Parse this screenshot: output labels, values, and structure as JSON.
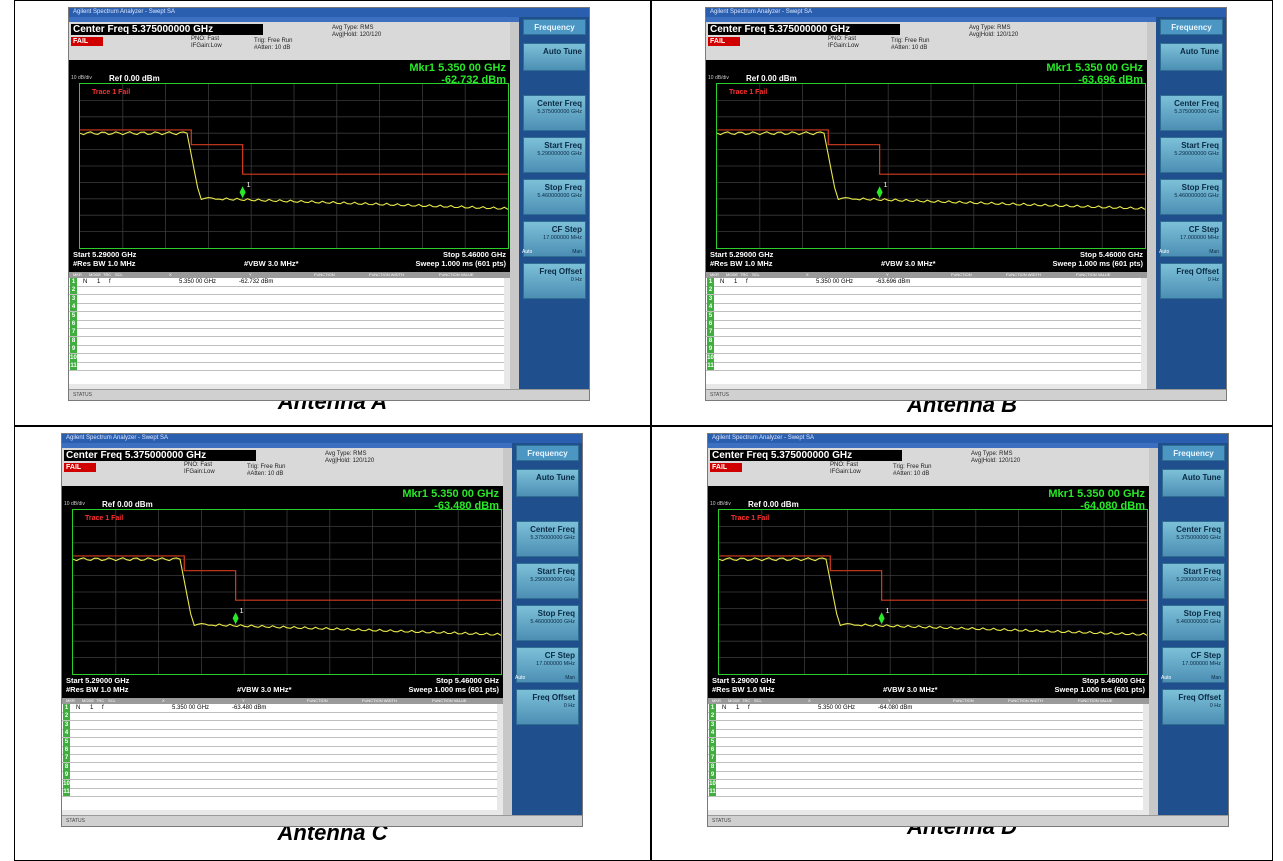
{
  "panels": [
    {
      "caption": "Antenna A",
      "window_title": "Agilent Spectrum Analyzer - Swept SA",
      "center_freq": "Center Freq 5.375000000 GHz",
      "fail": "FAIL",
      "trig": "Trig: Free Run",
      "atten": "#Atten: 10 dB",
      "pno": "PNO: Fast",
      "ifgain": "IFGain:Low",
      "avg_type": "Avg Type: RMS",
      "avg_hold": "Avg|Hold: 120/120",
      "marker_freq": "Mkr1 5.350 00 GHz",
      "marker_val": "-62.732 dBm",
      "ref": "Ref 0.00 dBm",
      "ref_div": "10 dB/div",
      "trace_label": "Trace 1 Fail",
      "start": "Start 5.29000 GHz",
      "res_bw": "#Res BW 1.0 MHz",
      "vbw": "#VBW 3.0 MHz*",
      "stop": "Stop 5.46000 GHz",
      "sweep": "Sweep  1.000 ms (601 pts)",
      "table_row1": [
        "N",
        "1",
        "f",
        "5.350 00 GHz",
        "-62.732 dBm"
      ],
      "status": "STATUS"
    },
    {
      "caption": "Antenna B",
      "window_title": "Agilent Spectrum Analyzer - Swept SA",
      "center_freq": "Center Freq 5.375000000 GHz",
      "fail": "FAIL",
      "trig": "Trig: Free Run",
      "atten": "#Atten: 10 dB",
      "pno": "PNO: Fast",
      "ifgain": "IFGain:Low",
      "avg_type": "Avg Type: RMS",
      "avg_hold": "Avg|Hold: 120/120",
      "marker_freq": "Mkr1 5.350 00 GHz",
      "marker_val": "-63.696 dBm",
      "ref": "Ref 0.00 dBm",
      "ref_div": "10 dB/div",
      "trace_label": "Trace 1 Fail",
      "start": "Start 5.29000 GHz",
      "res_bw": "#Res BW 1.0 MHz",
      "vbw": "#VBW 3.0 MHz*",
      "stop": "Stop 5.46000 GHz",
      "sweep": "Sweep  1.000 ms (601 pts)",
      "table_row1": [
        "N",
        "1",
        "f",
        "5.350 00 GHz",
        "-63.696 dBm"
      ],
      "status": "STATUS"
    },
    {
      "caption": "Antenna C",
      "window_title": "Agilent Spectrum Analyzer - Swept SA",
      "center_freq": "Center Freq 5.375000000 GHz",
      "fail": "FAIL",
      "trig": "Trig: Free Run",
      "atten": "#Atten: 10 dB",
      "pno": "PNO: Fast",
      "ifgain": "IFGain:Low",
      "avg_type": "Avg Type: RMS",
      "avg_hold": "Avg|Hold: 120/120",
      "marker_freq": "Mkr1 5.350 00 GHz",
      "marker_val": "-63.480 dBm",
      "ref": "Ref 0.00 dBm",
      "ref_div": "10 dB/div",
      "trace_label": "Trace 1 Fail",
      "start": "Start 5.29000 GHz",
      "res_bw": "#Res BW 1.0 MHz",
      "vbw": "#VBW 3.0 MHz*",
      "stop": "Stop 5.46000 GHz",
      "sweep": "Sweep  1.000 ms (601 pts)",
      "table_row1": [
        "N",
        "1",
        "f",
        "5.350 00 GHz",
        "-63.480 dBm"
      ],
      "status": "STATUS"
    },
    {
      "caption": "Antenna D",
      "window_title": "Agilent Spectrum Analyzer - Swept SA",
      "center_freq": "Center Freq 5.375000000 GHz",
      "fail": "FAIL",
      "trig": "Trig: Free Run",
      "atten": "#Atten: 10 dB",
      "pno": "PNO: Fast",
      "ifgain": "IFGain:Low",
      "avg_type": "Avg Type: RMS",
      "avg_hold": "Avg|Hold: 120/120",
      "marker_freq": "Mkr1 5.350 00 GHz",
      "marker_val": "-64.080 dBm",
      "ref": "Ref 0.00 dBm",
      "ref_div": "10 dB/div",
      "trace_label": "Trace 1 Fail",
      "start": "Start 5.29000 GHz",
      "res_bw": "#Res BW 1.0 MHz",
      "vbw": "#VBW 3.0 MHz*",
      "stop": "Stop 5.46000 GHz",
      "sweep": "Sweep  1.000 ms (601 pts)",
      "table_row1": [
        "N",
        "1",
        "f",
        "5.350 00 GHz",
        "-64.080 dBm"
      ],
      "status": "STATUS"
    }
  ],
  "softkeys": {
    "title": "Frequency",
    "auto_tune": "Auto Tune",
    "center_freq": "Center Freq",
    "center_freq_val": "5.375000000 GHz",
    "start_freq": "Start Freq",
    "start_freq_val": "5.290000000 GHz",
    "stop_freq": "Stop Freq",
    "stop_freq_val": "5.460000000 GHz",
    "cf_step": "CF Step",
    "cf_step_val": "17.000000 MHz",
    "auto": "Auto",
    "man": "Man",
    "freq_offset": "Freq Offset",
    "freq_offset_val": "0 Hz"
  },
  "table_header": [
    "MKR",
    "MODE",
    "TRC",
    "SCL",
    "X",
    "Y",
    "FUNCTION",
    "FUNCTION WIDTH",
    "FUNCTION VALUE"
  ],
  "row_numbers": [
    "1",
    "2",
    "3",
    "4",
    "5",
    "6",
    "7",
    "8",
    "9",
    "10",
    "11"
  ],
  "colors": {
    "trace": "#e8e84a",
    "limit": "#d23c1e",
    "marker": "#29e829",
    "grid": "#3a3a3a"
  }
}
